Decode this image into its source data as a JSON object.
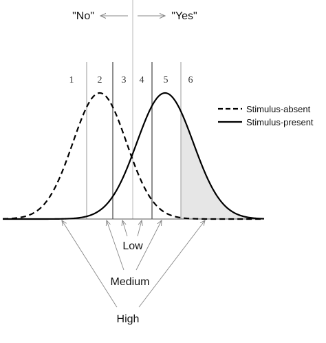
{
  "header": {
    "no_label": "\"No\"",
    "yes_label": "\"Yes\""
  },
  "regions": [
    "1",
    "2",
    "3",
    "4",
    "5",
    "6"
  ],
  "legend": {
    "absent_label": "Stimulus-absent",
    "present_label": "Stimulus-present"
  },
  "criteria": {
    "low_label": "Low",
    "medium_label": "Medium",
    "high_label": "High"
  },
  "colors": {
    "curve": "#000000",
    "divider": "#999999",
    "shade": "#e6e6e6",
    "arrow": "#888888"
  }
}
